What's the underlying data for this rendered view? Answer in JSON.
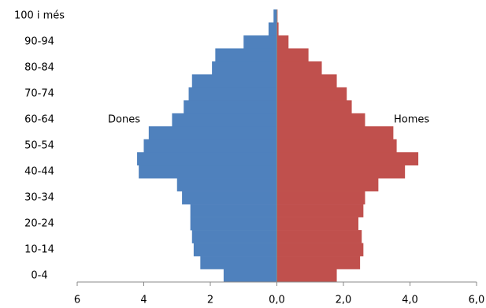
{
  "chart_data": {
    "type": "pyramid",
    "categories": [
      "0-4",
      null,
      "10-14",
      null,
      "20-24",
      null,
      "30-34",
      null,
      "40-44",
      null,
      "50-54",
      null,
      "60-64",
      null,
      "70-74",
      null,
      "80-84",
      null,
      "90-94",
      null,
      "100 i més"
    ],
    "series": [
      {
        "name": "Dones",
        "color": "#4f81bd",
        "values": [
          1.6,
          2.3,
          2.5,
          2.55,
          2.6,
          2.6,
          2.85,
          3.0,
          4.15,
          4.2,
          4.0,
          3.85,
          3.15,
          2.8,
          2.65,
          2.55,
          1.95,
          1.85,
          1.0,
          0.25,
          0.1
        ]
      },
      {
        "name": "Homes",
        "color": "#c0504d",
        "values": [
          1.8,
          2.5,
          2.6,
          2.55,
          2.45,
          2.6,
          2.65,
          3.05,
          3.85,
          4.25,
          3.6,
          3.5,
          2.65,
          2.25,
          2.1,
          1.8,
          1.35,
          0.95,
          0.35,
          0.05,
          0.02
        ]
      }
    ],
    "xlim": [
      -6,
      6
    ],
    "xticks": [
      {
        "value": -6,
        "label": "6"
      },
      {
        "value": -4,
        "label": "4"
      },
      {
        "value": -2,
        "label": "2"
      },
      {
        "value": 0,
        "label": "0,0"
      },
      {
        "value": 2,
        "label": "2,0"
      },
      {
        "value": 4,
        "label": "4,0"
      },
      {
        "value": 6,
        "label": "6,0"
      }
    ]
  }
}
